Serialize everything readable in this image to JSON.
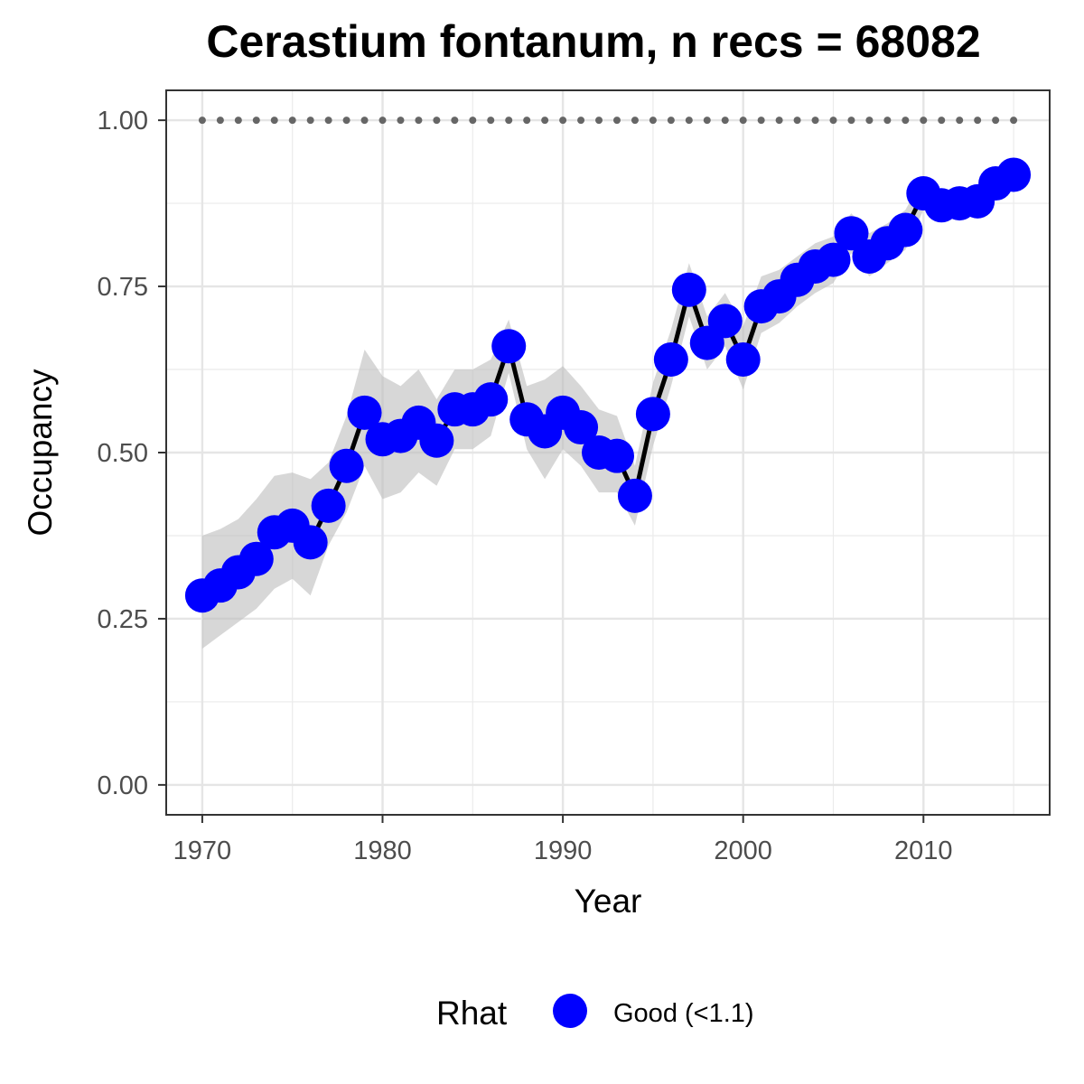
{
  "chart_data": {
    "type": "line",
    "title": "Cerastium fontanum, n recs = 68082",
    "xlabel": "Year",
    "ylabel": "Occupancy",
    "xlim": [
      1968,
      2017
    ],
    "ylim": [
      -0.045,
      1.045
    ],
    "x_ticks": [
      1970,
      1980,
      1990,
      2000,
      2010
    ],
    "x_tick_labels": [
      "1970",
      "1980",
      "1990",
      "2000",
      "2010"
    ],
    "y_ticks": [
      0,
      0.25,
      0.5,
      0.75,
      1.0
    ],
    "y_tick_labels": [
      "0.00",
      "0.25",
      "0.50",
      "0.75",
      "1.00"
    ],
    "grid": true,
    "legend": {
      "position": "bottom",
      "title": "Rhat",
      "entries": [
        {
          "label": "Good (<1.1)",
          "color": "#0000ff"
        }
      ]
    },
    "colors": {
      "points": "#0000ff",
      "line": "#000000",
      "ribbon": "#bfbfbf",
      "reference": "#666666"
    },
    "reference_line": {
      "y": 1.0,
      "style": "dotted"
    },
    "series": [
      {
        "x": [
          1970,
          1971,
          1972,
          1973,
          1974,
          1975,
          1976,
          1977,
          1978,
          1979,
          1980,
          1981,
          1982,
          1983,
          1984,
          1985,
          1986,
          1987,
          1988,
          1989,
          1990,
          1991,
          1992,
          1993,
          1994,
          1995,
          1996,
          1997,
          1998,
          1999,
          2000,
          2001,
          2002,
          2003,
          2004,
          2005,
          2006,
          2007,
          2008,
          2009,
          2010,
          2011,
          2012,
          2013,
          2014,
          2015
        ],
        "values": [
          0.285,
          0.3,
          0.32,
          0.34,
          0.38,
          0.39,
          0.365,
          0.42,
          0.48,
          0.56,
          0.52,
          0.525,
          0.545,
          0.518,
          0.565,
          0.565,
          0.58,
          0.66,
          0.55,
          0.532,
          0.56,
          0.538,
          0.5,
          0.495,
          0.435,
          0.558,
          0.64,
          0.745,
          0.665,
          0.698,
          0.64,
          0.72,
          0.735,
          0.76,
          0.78,
          0.79,
          0.83,
          0.795,
          0.815,
          0.835,
          0.89,
          0.872,
          0.875,
          0.878,
          0.905,
          0.918
        ],
        "lower": [
          0.205,
          0.225,
          0.245,
          0.265,
          0.295,
          0.31,
          0.285,
          0.36,
          0.41,
          0.48,
          0.43,
          0.44,
          0.47,
          0.45,
          0.505,
          0.505,
          0.525,
          0.62,
          0.505,
          0.46,
          0.505,
          0.48,
          0.44,
          0.44,
          0.39,
          0.51,
          0.6,
          0.705,
          0.625,
          0.66,
          0.595,
          0.68,
          0.695,
          0.72,
          0.74,
          0.755,
          0.8,
          0.765,
          0.785,
          0.805,
          0.865,
          0.85,
          0.855,
          0.857,
          0.885,
          0.9
        ],
        "upper": [
          0.375,
          0.385,
          0.4,
          0.43,
          0.465,
          0.47,
          0.46,
          0.485,
          0.555,
          0.655,
          0.615,
          0.6,
          0.625,
          0.58,
          0.625,
          0.625,
          0.64,
          0.7,
          0.6,
          0.61,
          0.63,
          0.6,
          0.565,
          0.555,
          0.48,
          0.605,
          0.685,
          0.785,
          0.705,
          0.74,
          0.69,
          0.765,
          0.775,
          0.795,
          0.815,
          0.825,
          0.86,
          0.83,
          0.845,
          0.865,
          0.915,
          0.895,
          0.895,
          0.9,
          0.925,
          0.935
        ]
      }
    ]
  }
}
